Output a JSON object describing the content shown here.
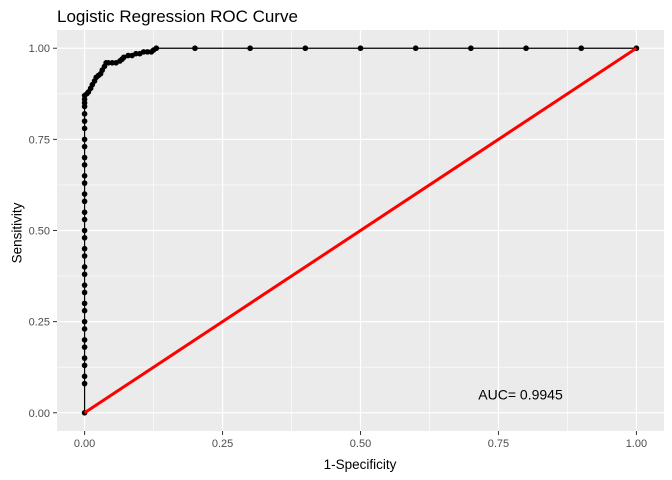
{
  "chart_data": {
    "type": "line",
    "title": "Logistic Regression ROC Curve",
    "xlabel": "1-Specificity",
    "ylabel": "Sensitivity",
    "xlim": [
      -0.05,
      1.05
    ],
    "ylim": [
      -0.05,
      1.05
    ],
    "x_ticks": [
      "0.00",
      "0.25",
      "0.50",
      "0.75",
      "1.00"
    ],
    "y_ticks": [
      "0.00",
      "0.25",
      "0.50",
      "0.75",
      "1.00"
    ],
    "grid": true,
    "annotation": "AUC= 0.9945",
    "annotation_pos": [
      0.79,
      0.05
    ],
    "series": [
      {
        "color": "#000000",
        "style": "line-with-points",
        "x": [
          0,
          0,
          0,
          0,
          0,
          0,
          0,
          0,
          0,
          0,
          0,
          0,
          0,
          0,
          0,
          0,
          0,
          0,
          0,
          0,
          0,
          0,
          0,
          0,
          0,
          0,
          0,
          0,
          0,
          0,
          0,
          0,
          0,
          0,
          0,
          0,
          0.004,
          0.007,
          0.011,
          0.014,
          0.018,
          0.021,
          0.025,
          0.029,
          0.032,
          0.036,
          0.039,
          0.043,
          0.05,
          0.057,
          0.064,
          0.068,
          0.071,
          0.079,
          0.086,
          0.093,
          0.1,
          0.107,
          0.114,
          0.121,
          0.125,
          0.13,
          0.2,
          0.3,
          0.4,
          0.5,
          0.6,
          0.7,
          0.8,
          0.9,
          1.0
        ],
        "y": [
          0,
          0.08,
          0.1,
          0.13,
          0.15,
          0.18,
          0.2,
          0.23,
          0.25,
          0.28,
          0.3,
          0.33,
          0.35,
          0.38,
          0.4,
          0.43,
          0.45,
          0.48,
          0.5,
          0.53,
          0.55,
          0.58,
          0.6,
          0.63,
          0.65,
          0.68,
          0.7,
          0.73,
          0.75,
          0.78,
          0.8,
          0.82,
          0.84,
          0.85,
          0.86,
          0.87,
          0.875,
          0.88,
          0.89,
          0.9,
          0.91,
          0.92,
          0.925,
          0.93,
          0.94,
          0.95,
          0.96,
          0.96,
          0.96,
          0.96,
          0.965,
          0.97,
          0.975,
          0.98,
          0.98,
          0.985,
          0.985,
          0.99,
          0.99,
          0.99,
          0.995,
          1.0,
          1.0,
          1.0,
          1.0,
          1.0,
          1.0,
          1.0,
          1.0,
          1.0,
          1.0
        ]
      },
      {
        "color": "#ff0000",
        "style": "line",
        "x": [
          0,
          1
        ],
        "y": [
          0,
          1
        ]
      }
    ]
  }
}
